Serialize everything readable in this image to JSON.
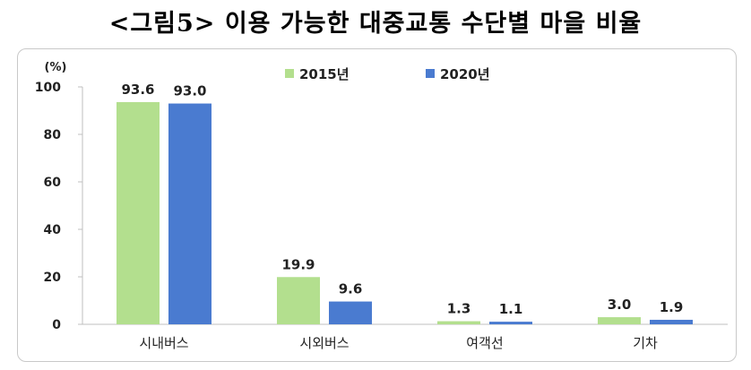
{
  "title": "<그림5> 이용 가능한 대중교통 수단별 마을 비율",
  "chart_data": {
    "type": "bar",
    "unit": "(%)",
    "categories": [
      "시내버스",
      "시외버스",
      "여객선",
      "기차"
    ],
    "series": [
      {
        "name": "2015년",
        "color": "#b3df8e",
        "values": [
          93.6,
          19.9,
          1.3,
          3.0
        ],
        "labels": [
          "93.6",
          "19.9",
          "1.3",
          "3.0"
        ]
      },
      {
        "name": "2020년",
        "color": "#4a7bd0",
        "values": [
          93.0,
          9.6,
          1.1,
          1.9
        ],
        "labels": [
          "93.0",
          "9.6",
          "1.1",
          "1.9"
        ]
      }
    ],
    "yticks": [
      "0",
      "20",
      "40",
      "60",
      "80",
      "100"
    ],
    "ylim": [
      0,
      100
    ],
    "legend_position": "top-center",
    "grid": false
  }
}
